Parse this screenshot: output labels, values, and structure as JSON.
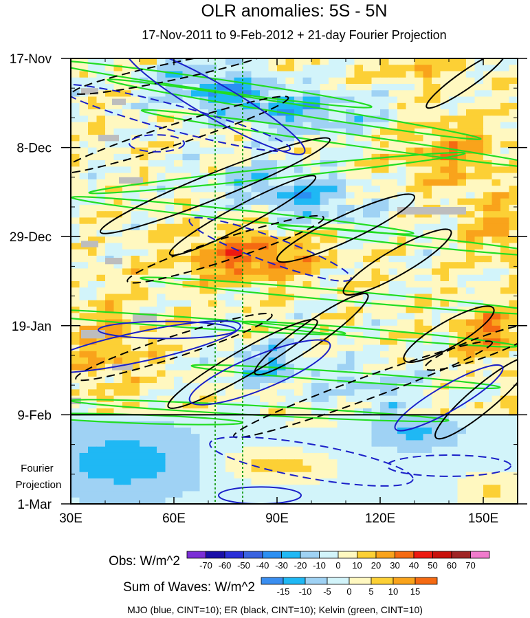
{
  "chart_data": {
    "type": "heatmap",
    "title": "OLR anomalies: 5S - 5N",
    "subtitle": "17-Nov-2011 to 9-Feb-2012 + 21-day Fourier Projection",
    "xlim": [
      30,
      160
    ],
    "x_ticks": [
      {
        "value": 30,
        "label": "30E"
      },
      {
        "value": 60,
        "label": "60E"
      },
      {
        "value": 90,
        "label": "90E"
      },
      {
        "value": 120,
        "label": "120E"
      },
      {
        "value": 150,
        "label": "150E"
      }
    ],
    "ylim_days": [
      0,
      105
    ],
    "y_ticks": [
      {
        "day": 0,
        "label": "17-Nov"
      },
      {
        "day": 21,
        "label": "8-Dec"
      },
      {
        "day": 42,
        "label": "29-Dec"
      },
      {
        "day": 63,
        "label": "19-Jan"
      },
      {
        "day": 84,
        "label": "9-Feb"
      },
      {
        "day": 105,
        "label": "1-Mar"
      }
    ],
    "projection_start_day": 84,
    "projection_label": [
      "Fourier",
      "Projection"
    ],
    "reference_lines_lon": [
      72,
      80
    ],
    "obs_colorbar": {
      "label": "Obs: W/m^2",
      "levels": [
        -70,
        -60,
        -50,
        -40,
        -30,
        -20,
        -10,
        0,
        10,
        20,
        30,
        40,
        50,
        60,
        70
      ],
      "colors": [
        "#7b2fd6",
        "#1a0fa8",
        "#2a2fd8",
        "#3a63e0",
        "#2b8ff2",
        "#1fb8f4",
        "#9fd2f4",
        "#d2f4fa",
        "#fff8c0",
        "#fcd035",
        "#f9a31b",
        "#f56a12",
        "#ed1a11",
        "#c8110c",
        "#9f2525",
        "#f07bcc"
      ]
    },
    "waves_colorbar": {
      "label": "Sum of Waves: W/m^2",
      "levels": [
        -15,
        -10,
        -5,
        0,
        5,
        10,
        15
      ],
      "colors": [
        "#3a8ef0",
        "#1fb8f4",
        "#9fd2f4",
        "#d2f4fa",
        "#fff8c0",
        "#fcd035",
        "#f9a31b",
        "#f56a12"
      ]
    },
    "contour_legend": "MJO (blue, CINT=10); ER (black, CINT=10); Kelvin (green, CINT=10)",
    "series_colors": {
      "mjo": "#1b20c8",
      "er": "#000000",
      "kelvin": "#22dd22",
      "reference": "#119911"
    }
  }
}
